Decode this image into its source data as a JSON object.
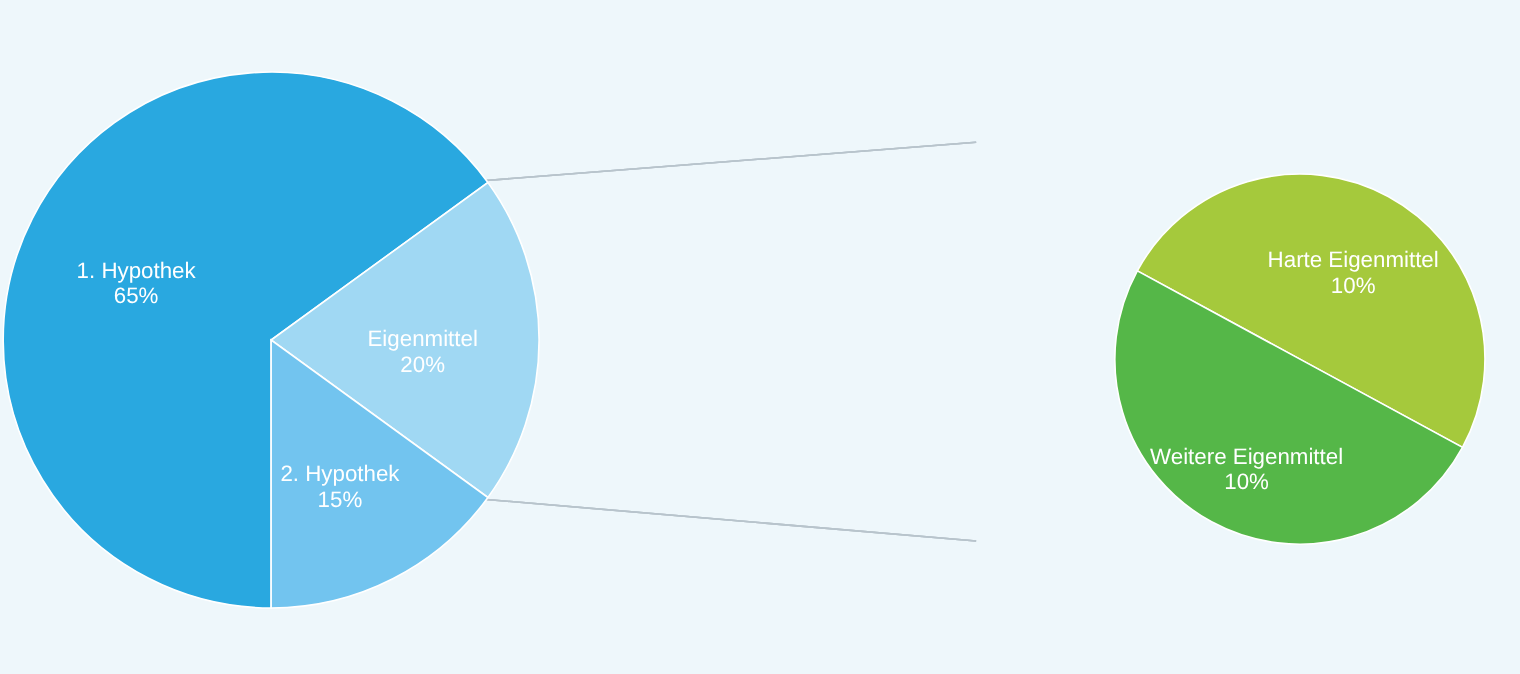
{
  "chart_data": [
    {
      "type": "pie",
      "categories": [
        "1. Hypothek",
        "Eigenmittel",
        "2. Hypothek"
      ],
      "values": [
        65,
        20,
        15
      ],
      "colors": [
        "#29a8e0",
        "#a0d8f3",
        "#72c4ef"
      ],
      "value_labels": [
        "65%",
        "20%",
        "15%"
      ]
    },
    {
      "type": "pie",
      "categories": [
        "Harte Eigenmittel",
        "Weitere Eigenmittel"
      ],
      "values": [
        10,
        10
      ],
      "colors": [
        "#a5c93c",
        "#55b748"
      ],
      "value_labels": [
        "10%",
        "10%"
      ]
    }
  ]
}
